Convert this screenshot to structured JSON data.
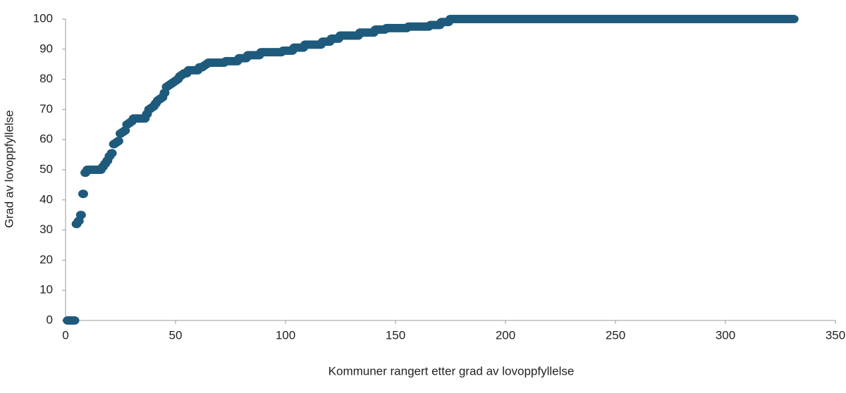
{
  "chart_data": {
    "type": "scatter",
    "x_label": "Kommuner rangert etter grad av lovoppfyllelse",
    "y_label": "Grad av lovoppfyllelse",
    "color": "#1e5a7c",
    "xlim": [
      0,
      350
    ],
    "xticks": [
      0,
      50,
      100,
      150,
      200,
      250,
      300,
      350
    ],
    "ylim": [
      0,
      100
    ],
    "yticks": [
      0,
      10,
      20,
      30,
      40,
      50,
      60,
      70,
      80,
      90,
      100
    ],
    "x": [
      1,
      2,
      3,
      4,
      5,
      6,
      7,
      8,
      9,
      10,
      11,
      12,
      13,
      14,
      15,
      16,
      17,
      18,
      19,
      20,
      21,
      22,
      23,
      24,
      25,
      26,
      27,
      28,
      29,
      30,
      31,
      32,
      33,
      34,
      35,
      36,
      37,
      38,
      39,
      40,
      41,
      42,
      43,
      44,
      45,
      46,
      47,
      48,
      49,
      50,
      51,
      52,
      53,
      54,
      55,
      56,
      57,
      58,
      59,
      60,
      61,
      62,
      63,
      64,
      65,
      66,
      67,
      68,
      69,
      70,
      71,
      72,
      73,
      74,
      75,
      76,
      77,
      78,
      79,
      80,
      81,
      82,
      83,
      84,
      85,
      86,
      87,
      88,
      89,
      90,
      91,
      92,
      93,
      94,
      95,
      96,
      97,
      98,
      99,
      100,
      101,
      102,
      103,
      104,
      105,
      106,
      107,
      108,
      109,
      110,
      111,
      112,
      113,
      114,
      115,
      116,
      117,
      118,
      119,
      120,
      121,
      122,
      123,
      124,
      125,
      126,
      127,
      128,
      129,
      130,
      131,
      132,
      133,
      134,
      135,
      136,
      137,
      138,
      139,
      140,
      141,
      142,
      143,
      144,
      145,
      146,
      147,
      148,
      149,
      150,
      151,
      152,
      153,
      154,
      155,
      156,
      157,
      158,
      159,
      160,
      161,
      162,
      163,
      164,
      165,
      166,
      167,
      168,
      169,
      170,
      171,
      172,
      173,
      174,
      175,
      176,
      177,
      178,
      179,
      180,
      181,
      182,
      183,
      184,
      185,
      186,
      187,
      188,
      189,
      190,
      191,
      192,
      193,
      194,
      195,
      196,
      197,
      198,
      199,
      200,
      201,
      202,
      203,
      204,
      205,
      206,
      207,
      208,
      209,
      210,
      211,
      212,
      213,
      214,
      215,
      216,
      217,
      218,
      219,
      220,
      221,
      222,
      223,
      224,
      225,
      226,
      227,
      228,
      229,
      230,
      231,
      232,
      233,
      234,
      235,
      236,
      237,
      238,
      239,
      240,
      241,
      242,
      243,
      244,
      245,
      246,
      247,
      248,
      249,
      250,
      251,
      252,
      253,
      254,
      255,
      256,
      257,
      258,
      259,
      260,
      261,
      262,
      263,
      264,
      265,
      266,
      267,
      268,
      269,
      270,
      271,
      272,
      273,
      274,
      275,
      276,
      277,
      278,
      279,
      280,
      281,
      282,
      283,
      284,
      285,
      286,
      287,
      288,
      289,
      290,
      291,
      292,
      293,
      294,
      295,
      296,
      297,
      298,
      299,
      300,
      301,
      302,
      303,
      304,
      305,
      306,
      307,
      308,
      309,
      310,
      311,
      312,
      313,
      314,
      315,
      316,
      317,
      318,
      319,
      320,
      321,
      322,
      323,
      324,
      325,
      326,
      327,
      328,
      329,
      330,
      331
    ],
    "values": [
      0,
      0,
      0,
      0,
      32,
      33,
      35,
      42,
      49,
      50,
      50,
      50,
      50,
      50,
      50,
      50,
      51,
      52,
      53,
      54.5,
      55.5,
      58.5,
      59,
      59.5,
      62,
      62.5,
      63,
      65,
      65.5,
      66,
      67,
      67,
      67,
      67,
      67,
      67,
      68.5,
      70,
      70.5,
      71,
      72,
      73,
      73.5,
      74,
      75.5,
      77.5,
      78,
      78.5,
      79,
      79.5,
      80,
      81,
      81.5,
      82,
      82,
      83,
      83,
      83,
      83,
      83,
      84,
      84,
      84.5,
      85,
      85.5,
      85.5,
      85.5,
      85.5,
      85.5,
      85.5,
      85.5,
      85.5,
      86,
      86,
      86,
      86,
      86,
      86,
      87,
      87,
      87,
      87,
      88,
      88,
      88,
      88,
      88,
      88,
      89,
      89,
      89,
      89,
      89,
      89,
      89,
      89,
      89,
      89,
      89.5,
      89.5,
      89.5,
      89.5,
      89.5,
      90.5,
      90.5,
      90.5,
      90.5,
      90.5,
      91.5,
      91.5,
      91.5,
      91.5,
      91.5,
      91.5,
      91.5,
      91.5,
      92.5,
      92.5,
      92.5,
      92.5,
      93.5,
      93.5,
      93.5,
      93.5,
      94.5,
      94.5,
      94.5,
      94.5,
      94.5,
      94.5,
      94.5,
      94.5,
      94.5,
      95.5,
      95.5,
      95.5,
      95.5,
      95.5,
      95.5,
      95.5,
      96.5,
      96.5,
      96.5,
      96.5,
      96.5,
      97,
      97,
      97,
      97,
      97,
      97,
      97,
      97,
      97,
      97,
      97.5,
      97.5,
      97.5,
      97.5,
      97.5,
      97.5,
      97.5,
      97.5,
      97.5,
      97.5,
      98,
      98,
      98,
      98,
      98,
      99,
      99,
      99,
      99,
      100,
      100,
      100,
      100,
      100,
      100,
      100,
      100,
      100,
      100,
      100,
      100,
      100,
      100,
      100,
      100,
      100,
      100,
      100,
      100,
      100,
      100,
      100,
      100,
      100,
      100,
      100,
      100,
      100,
      100,
      100,
      100,
      100,
      100,
      100,
      100,
      100,
      100,
      100,
      100,
      100,
      100,
      100,
      100,
      100,
      100,
      100,
      100,
      100,
      100,
      100,
      100,
      100,
      100,
      100,
      100,
      100,
      100,
      100,
      100,
      100,
      100,
      100,
      100,
      100,
      100,
      100,
      100,
      100,
      100,
      100,
      100,
      100,
      100,
      100,
      100,
      100,
      100,
      100,
      100,
      100,
      100,
      100,
      100,
      100,
      100,
      100,
      100,
      100,
      100,
      100,
      100,
      100,
      100,
      100,
      100,
      100,
      100,
      100,
      100,
      100,
      100,
      100,
      100,
      100,
      100,
      100,
      100,
      100,
      100,
      100,
      100,
      100,
      100,
      100,
      100,
      100,
      100,
      100,
      100,
      100,
      100,
      100,
      100,
      100,
      100,
      100,
      100,
      100,
      100,
      100,
      100,
      100,
      100,
      100,
      100,
      100,
      100,
      100,
      100,
      100,
      100,
      100,
      100,
      100,
      100,
      100,
      100,
      100,
      100,
      100,
      100,
      100,
      100,
      100,
      100,
      100
    ]
  }
}
